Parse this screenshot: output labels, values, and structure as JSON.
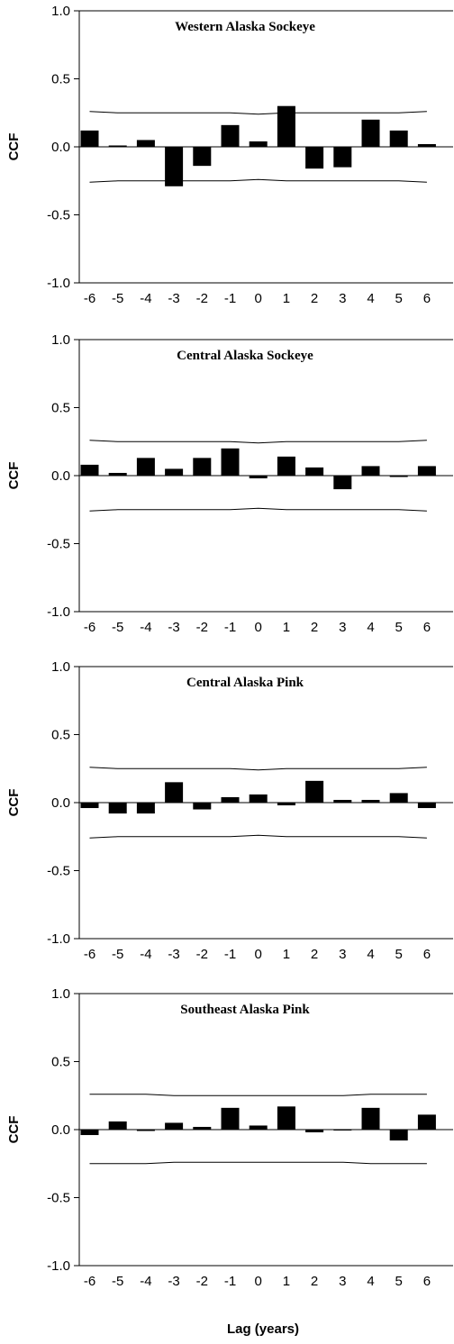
{
  "xlabel": "Lag (years)",
  "chart_data": [
    {
      "type": "bar",
      "title": "Western Alaska Sockeye",
      "ylabel": "CCF",
      "ylim": [
        -1.0,
        1.0
      ],
      "yticks": [
        "1.0",
        "0.5",
        "0.0",
        "-0.5",
        "-1.0"
      ],
      "categories": [
        "-6",
        "-5",
        "-4",
        "-3",
        "-2",
        "-1",
        "0",
        "1",
        "2",
        "3",
        "4",
        "5",
        "6"
      ],
      "values": [
        0.12,
        0.01,
        0.05,
        -0.29,
        -0.14,
        0.16,
        0.04,
        0.3,
        -0.16,
        -0.15,
        0.2,
        0.12,
        0.02
      ],
      "upper_bound": [
        0.26,
        0.25,
        0.25,
        0.25,
        0.25,
        0.25,
        0.24,
        0.25,
        0.25,
        0.25,
        0.25,
        0.25,
        0.26
      ],
      "lower_bound": [
        -0.26,
        -0.25,
        -0.25,
        -0.25,
        -0.25,
        -0.25,
        -0.24,
        -0.25,
        -0.25,
        -0.25,
        -0.25,
        -0.25,
        -0.26
      ]
    },
    {
      "type": "bar",
      "title": "Central Alaska Sockeye",
      "ylabel": "CCF",
      "ylim": [
        -1.0,
        1.0
      ],
      "yticks": [
        "1.0",
        "0.5",
        "0.0",
        "-0.5",
        "-1.0"
      ],
      "categories": [
        "-6",
        "-5",
        "-4",
        "-3",
        "-2",
        "-1",
        "0",
        "1",
        "2",
        "3",
        "4",
        "5",
        "6"
      ],
      "values": [
        0.08,
        0.02,
        0.13,
        0.05,
        0.13,
        0.2,
        -0.02,
        0.14,
        0.06,
        -0.1,
        0.07,
        -0.01,
        0.07
      ],
      "upper_bound": [
        0.26,
        0.25,
        0.25,
        0.25,
        0.25,
        0.25,
        0.24,
        0.25,
        0.25,
        0.25,
        0.25,
        0.25,
        0.26
      ],
      "lower_bound": [
        -0.26,
        -0.25,
        -0.25,
        -0.25,
        -0.25,
        -0.25,
        -0.24,
        -0.25,
        -0.25,
        -0.25,
        -0.25,
        -0.25,
        -0.26
      ]
    },
    {
      "type": "bar",
      "title": "Central Alaska Pink",
      "ylabel": "CCF",
      "ylim": [
        -1.0,
        1.0
      ],
      "yticks": [
        "1.0",
        "0.5",
        "0.0",
        "-0.5",
        "-1.0"
      ],
      "categories": [
        "-6",
        "-5",
        "-4",
        "-3",
        "-2",
        "-1",
        "0",
        "1",
        "2",
        "3",
        "4",
        "5",
        "6"
      ],
      "values": [
        -0.04,
        -0.08,
        -0.08,
        0.15,
        -0.05,
        0.04,
        0.06,
        -0.02,
        0.16,
        0.02,
        0.02,
        0.07,
        -0.04
      ],
      "upper_bound": [
        0.26,
        0.25,
        0.25,
        0.25,
        0.25,
        0.25,
        0.24,
        0.25,
        0.25,
        0.25,
        0.25,
        0.25,
        0.26
      ],
      "lower_bound": [
        -0.26,
        -0.25,
        -0.25,
        -0.25,
        -0.25,
        -0.25,
        -0.24,
        -0.25,
        -0.25,
        -0.25,
        -0.25,
        -0.25,
        -0.26
      ]
    },
    {
      "type": "bar",
      "title": "Southeast Alaska Pink",
      "ylabel": "CCF",
      "ylim": [
        -1.0,
        1.0
      ],
      "yticks": [
        "1.0",
        "0.5",
        "0.0",
        "-0.5",
        "-1.0"
      ],
      "categories": [
        "-6",
        "-5",
        "-4",
        "-3",
        "-2",
        "-1",
        "0",
        "1",
        "2",
        "3",
        "4",
        "5",
        "6"
      ],
      "values": [
        -0.04,
        0.06,
        -0.01,
        0.05,
        0.02,
        0.16,
        0.03,
        0.17,
        -0.02,
        0.0,
        0.16,
        -0.08,
        0.11
      ],
      "upper_bound": [
        0.26,
        0.26,
        0.26,
        0.25,
        0.25,
        0.25,
        0.25,
        0.25,
        0.25,
        0.25,
        0.26,
        0.26,
        0.26
      ],
      "lower_bound": [
        -0.25,
        -0.25,
        -0.25,
        -0.24,
        -0.24,
        -0.24,
        -0.24,
        -0.24,
        -0.24,
        -0.24,
        -0.25,
        -0.25,
        -0.25
      ]
    }
  ]
}
